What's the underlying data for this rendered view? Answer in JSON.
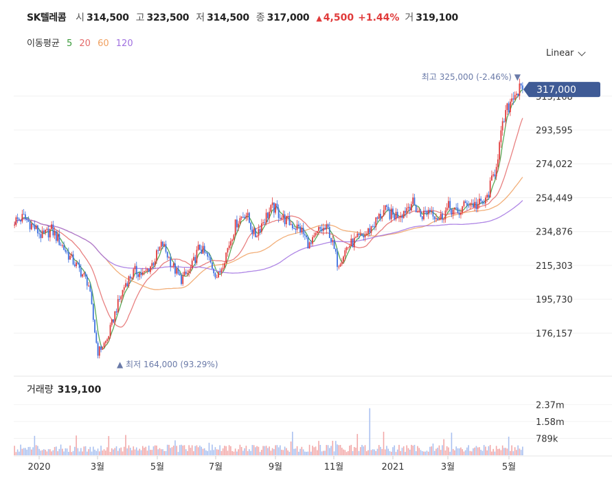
{
  "header": {
    "name": "SK텔레콤",
    "open_label": "시",
    "open": "314,500",
    "high_label": "고",
    "high": "323,500",
    "low_label": "저",
    "low": "314,500",
    "close_label": "종",
    "close": "317,000",
    "change_arrow": "▲",
    "change": "4,500",
    "change_pct": "+1.44%",
    "volume_label": "거",
    "volume": "319,100",
    "up_color": "#e03b3b"
  },
  "moving_average": {
    "label": "이동평균",
    "periods": [
      {
        "value": "5",
        "color": "#3a9a3a"
      },
      {
        "value": "20",
        "color": "#e46a6a"
      },
      {
        "value": "60",
        "color": "#f0a060"
      },
      {
        "value": "120",
        "color": "#a070e0"
      }
    ]
  },
  "scale_selector": {
    "label": "Linear"
  },
  "chart_data": {
    "type": "candlestick",
    "y_axis_ticks": [
      "176,157",
      "195,730",
      "215,303",
      "234,876",
      "254,449",
      "274,022",
      "293,595",
      "313,168"
    ],
    "y_axis_values": [
      176157,
      195730,
      215303,
      234876,
      254449,
      274022,
      293595,
      313168
    ],
    "ylim": [
      164000,
      325000
    ],
    "x_axis_ticks": [
      "2020",
      "3월",
      "5월",
      "7월",
      "9월",
      "11월",
      "2021",
      "3월",
      "5월"
    ],
    "last_price": "317,000",
    "last_price_value": 317000,
    "high_annotation": {
      "label": "최고",
      "value": "325,000",
      "pct": "(-2.46%)",
      "arrow": "▼"
    },
    "low_annotation": {
      "label": "최저",
      "value": "164,000",
      "pct": "(93.29%)",
      "arrow": "▲"
    },
    "close_series": [
      241000,
      243000,
      238000,
      232000,
      236000,
      228000,
      220000,
      213000,
      205000,
      165000,
      172000,
      190000,
      205000,
      212000,
      210000,
      217000,
      228000,
      216000,
      207000,
      212000,
      226000,
      219000,
      208000,
      224000,
      240000,
      246000,
      232000,
      242000,
      249000,
      243000,
      239000,
      236000,
      226000,
      236000,
      236000,
      216000,
      226000,
      230000,
      233000,
      240000,
      247000,
      244000,
      246000,
      252000,
      244000,
      248000,
      242000,
      249000,
      245000,
      252000,
      250000,
      252000,
      270000,
      300000,
      315000,
      317000
    ],
    "volume_ticks": [
      "2.37m",
      "1.58m",
      "789k"
    ],
    "volume_tick_values": [
      2370000,
      1580000,
      789000
    ]
  },
  "volume_panel": {
    "label": "거래량",
    "value": "319,100"
  },
  "colors": {
    "up": "#e03b3b",
    "down": "#3b6fe0",
    "badge": "#3f5b96",
    "annotation": "#6a7aa8"
  }
}
